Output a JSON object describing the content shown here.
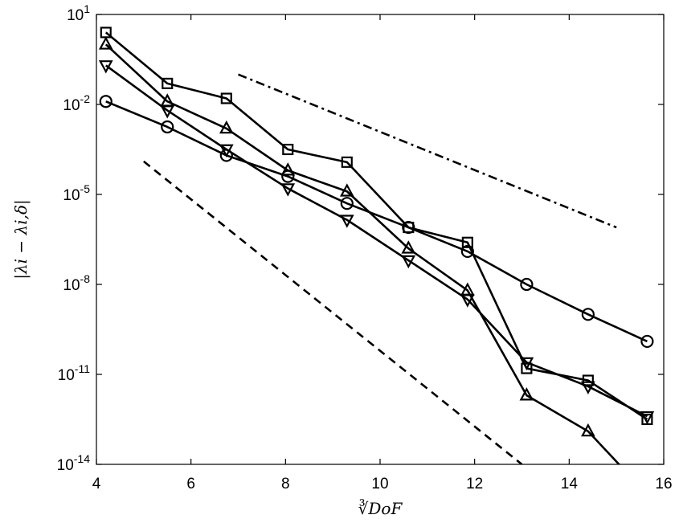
{
  "chart_data": {
    "type": "line",
    "xlabel": "∛DoF",
    "ylabel": "|λi − λi,δ|",
    "xlim": [
      4,
      16
    ],
    "ylim_exponent": [
      -14,
      1
    ],
    "y_scale": "log",
    "x_ticks": [
      "4",
      "6",
      "8",
      "10",
      "12",
      "14",
      "16"
    ],
    "y_ticks": [
      {
        "base": "10",
        "exp": "1",
        "value_exp": 1
      },
      {
        "base": "10",
        "exp": "-2",
        "value_exp": -2
      },
      {
        "base": "10",
        "exp": "-5",
        "value_exp": -5
      },
      {
        "base": "10",
        "exp": "-8",
        "value_exp": -8
      },
      {
        "base": "10",
        "exp": "-11",
        "value_exp": -11
      },
      {
        "base": "10",
        "exp": "-14",
        "value_exp": -14
      }
    ],
    "grid": false,
    "legend": "none",
    "series": [
      {
        "marker": "circle",
        "x": [
          4.2,
          5.5,
          6.75,
          8.05,
          9.3,
          10.6,
          11.85,
          13.1,
          14.4,
          15.65
        ],
        "y": [
          0.0126,
          0.00178,
          0.0002,
          3.98e-05,
          5.01e-06,
          7.94e-07,
          1.26e-07,
          1e-08,
          1e-09,
          1.26e-10
        ]
      },
      {
        "marker": "square",
        "x": [
          4.2,
          5.5,
          6.75,
          8.05,
          9.3,
          10.6,
          11.85,
          13.1,
          14.4,
          15.65
        ],
        "y": [
          2.51,
          0.0501,
          0.0159,
          0.000316,
          0.000119,
          7.94e-07,
          2.51e-07,
          1.58e-11,
          6.31e-12,
          3.16e-13
        ]
      },
      {
        "marker": "triangle-up",
        "x": [
          4.2,
          5.5,
          6.75,
          8.05,
          9.3,
          10.6,
          11.85,
          13.1,
          14.4,
          15.65
        ],
        "y": [
          1.0,
          0.0126,
          0.00158,
          6.31e-05,
          1.26e-05,
          1.58e-07,
          6.31e-09,
          2e-12,
          1.26e-13,
          1e-15
        ]
      },
      {
        "marker": "triangle-down",
        "x": [
          4.2,
          5.5,
          6.75,
          8.05,
          9.3,
          10.6,
          11.85,
          13.1,
          14.4,
          15.65
        ],
        "y": [
          0.2,
          0.00631,
          0.000316,
          1.58e-05,
          1.41e-06,
          6.31e-08,
          3.16e-09,
          2.51e-11,
          3.98e-12,
          3.98e-13
        ]
      }
    ],
    "reference_lines": [
      {
        "style": "dash-dot",
        "x": [
          7.0,
          15.0
        ],
        "y": [
          0.1,
          7.94e-07
        ]
      },
      {
        "style": "dashed",
        "x": [
          5.0,
          13.0
        ],
        "y": [
          0.000126,
          1e-14
        ]
      }
    ]
  }
}
